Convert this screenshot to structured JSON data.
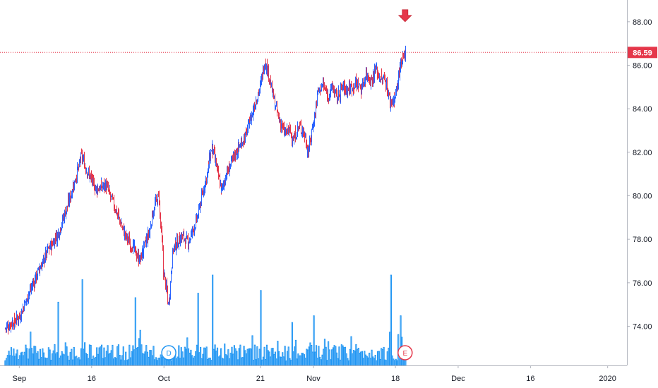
{
  "chart_data": {
    "type": "candlestick",
    "colors": {
      "up": "#2962ff",
      "down": "#e5374a",
      "volume": "#2196f3",
      "last_price_line": "#e5374a"
    },
    "y_axis": {
      "ticks": [
        74,
        76,
        78,
        80,
        82,
        84,
        86,
        88
      ],
      "tick_labels": [
        "74.00",
        "76.00",
        "78.00",
        "80.00",
        "82.00",
        "84.00",
        "86.00",
        "88.00"
      ],
      "range": [
        72.2,
        89.0
      ]
    },
    "x_axis": {
      "tick_labels": [
        {
          "label": "Sep",
          "day": 0
        },
        {
          "label": "16",
          "day": 15
        },
        {
          "label": "Oct",
          "day": 30
        },
        {
          "label": "21",
          "day": 50
        },
        {
          "label": "Nov",
          "day": 61
        },
        {
          "label": "18",
          "day": 78
        },
        {
          "label": "Dec",
          "day": 91
        },
        {
          "label": "16",
          "day": 106
        },
        {
          "label": "2020",
          "day": 122
        }
      ],
      "range_days": [
        -4,
        126
      ]
    },
    "last_price": {
      "value": 86.59,
      "label": "86.59"
    },
    "markers": [
      {
        "type": "dividend",
        "label": "D",
        "day": 31
      },
      {
        "type": "earnings",
        "label": "E",
        "day": 80
      },
      {
        "type": "arrow",
        "day": 80,
        "value": 88.1
      }
    ],
    "price_path": [
      [
        -3,
        73.9
      ],
      [
        0,
        74.4
      ],
      [
        2,
        75.5
      ],
      [
        4,
        76.5
      ],
      [
        6,
        77.5
      ],
      [
        8,
        78.2
      ],
      [
        10,
        79.5
      ],
      [
        12,
        81.0
      ],
      [
        13,
        81.8
      ],
      [
        14,
        81.2
      ],
      [
        16,
        80.3
      ],
      [
        18,
        80.5
      ],
      [
        20,
        79.4
      ],
      [
        22,
        78.2
      ],
      [
        24,
        77.5
      ],
      [
        25,
        77.0
      ],
      [
        27,
        78.3
      ],
      [
        28,
        79.5
      ],
      [
        29,
        80.0
      ],
      [
        30,
        76.5
      ],
      [
        31,
        75.0
      ],
      [
        32,
        77.6
      ],
      [
        34,
        78.2
      ],
      [
        35,
        77.8
      ],
      [
        37,
        79.0
      ],
      [
        39,
        81.0
      ],
      [
        40,
        82.3
      ],
      [
        42,
        80.2
      ],
      [
        43,
        81.0
      ],
      [
        45,
        82.0
      ],
      [
        47,
        82.8
      ],
      [
        48,
        83.5
      ],
      [
        49,
        84.3
      ],
      [
        50,
        85.0
      ],
      [
        51,
        86.2
      ],
      [
        52,
        85.4
      ],
      [
        53,
        84.2
      ],
      [
        54,
        83.5
      ],
      [
        55,
        82.9
      ],
      [
        56,
        83.0
      ],
      [
        57,
        82.6
      ],
      [
        58,
        83.2
      ],
      [
        59,
        83.0
      ],
      [
        60,
        82.0
      ],
      [
        61,
        83.3
      ],
      [
        62,
        84.8
      ],
      [
        63,
        85.1
      ],
      [
        64,
        84.6
      ],
      [
        65,
        85.0
      ],
      [
        66,
        84.5
      ],
      [
        67,
        85.0
      ],
      [
        68,
        84.9
      ],
      [
        69,
        85.0
      ],
      [
        70,
        85.2
      ],
      [
        71,
        84.9
      ],
      [
        72,
        85.6
      ],
      [
        73,
        85.3
      ],
      [
        74,
        85.8
      ],
      [
        75,
        85.4
      ],
      [
        76,
        85.3
      ],
      [
        77,
        84.3
      ],
      [
        78,
        84.5
      ],
      [
        79,
        85.8
      ],
      [
        80,
        86.59
      ]
    ],
    "volume_spikes": [
      {
        "day": 8,
        "value": 0.7
      },
      {
        "day": 13,
        "value": 0.95
      },
      {
        "day": 24,
        "value": 0.75
      },
      {
        "day": 37,
        "value": 0.8
      },
      {
        "day": 40,
        "value": 1.0
      },
      {
        "day": 50,
        "value": 0.83
      },
      {
        "day": 61,
        "value": 0.55
      },
      {
        "day": 77,
        "value": 1.0
      },
      {
        "day": 79,
        "value": 0.55
      }
    ]
  }
}
